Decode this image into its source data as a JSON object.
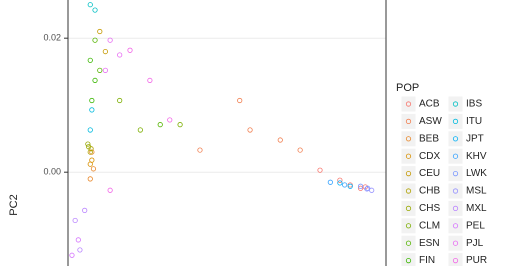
{
  "chart_data": {
    "type": "scatter",
    "y_label": "PC2",
    "legend_title": "POP",
    "ylim": [
      -0.014,
      0.0257
    ],
    "yticks": [
      0.02,
      {
        "value": 0,
        "label": "0.00"
      }
    ],
    "xlim": [
      -0.01,
      0.03
    ],
    "grid": true,
    "series": [
      {
        "name": "ACB",
        "color": "#F8766D",
        "x": [
          0.0255,
          0.0268,
          0.0274,
          0.0242,
          0.0217
        ],
        "values": [
          -0.0019,
          -0.0024,
          -0.0022,
          -0.0012,
          0.0003
        ]
      },
      {
        "name": "ASW",
        "color": "#F17E4F",
        "x": [
          0.0116,
          0.0167,
          0.0192,
          0.0129,
          0.0066
        ],
        "values": [
          0.0107,
          0.0048,
          0.0033,
          0.0063,
          0.0033
        ]
      },
      {
        "name": "BEB",
        "color": "#E88526",
        "x": [
          -0.007,
          -0.0068,
          -0.0072
        ],
        "values": [
          0.003,
          0.0005,
          -0.001
        ]
      },
      {
        "name": "CDX",
        "color": "#D89000",
        "x": [
          -0.0072,
          -0.007
        ],
        "values": [
          0.0012,
          0.0018
        ]
      },
      {
        "name": "CEU",
        "color": "#C59900",
        "x": [
          -0.006,
          -0.0053
        ],
        "values": [
          0.021,
          0.018
        ]
      },
      {
        "name": "CHB",
        "color": "#AFA100",
        "x": [
          -0.0072,
          -0.0071
        ],
        "values": [
          0.003,
          0.0035
        ]
      },
      {
        "name": "CHS",
        "color": "#97A800",
        "x": [
          -0.0075,
          -0.0074
        ],
        "values": [
          0.0042,
          0.0038
        ]
      },
      {
        "name": "CLM",
        "color": "#7CAE00",
        "x": [
          -0.0009,
          0.0041,
          -0.0035
        ],
        "values": [
          0.0063,
          0.0071,
          0.0107
        ]
      },
      {
        "name": "ESN",
        "color": "#55B400",
        "x": [
          -0.0066,
          -0.006,
          0.0016
        ],
        "values": [
          0.0197,
          0.0152,
          0.0071
        ]
      },
      {
        "name": "FIN",
        "color": "#39B600",
        "x": [
          -0.0072,
          -0.0066,
          -0.007
        ],
        "values": [
          0.0167,
          0.0137,
          0.0107
        ]
      },
      {
        "name": "IBS",
        "color": "#00BFC4",
        "x": [
          -0.0072,
          -0.0066
        ],
        "values": [
          0.025,
          0.0242
        ]
      },
      {
        "name": "ITU",
        "color": "#00BADE",
        "x": [
          -0.007,
          -0.0072
        ],
        "values": [
          0.0093,
          0.0063
        ]
      },
      {
        "name": "JPT",
        "color": "#00B0F6",
        "x": [
          0.0242,
          0.0255
        ],
        "values": [
          -0.0016,
          -0.0021
        ]
      },
      {
        "name": "KHV",
        "color": "#35A2FF",
        "x": [
          0.023,
          0.0248
        ],
        "values": [
          -0.0015,
          -0.0019
        ]
      },
      {
        "name": "LWK",
        "color": "#7997FF",
        "x": [
          0.0268,
          0.0277
        ],
        "values": [
          -0.0021,
          -0.0024
        ]
      },
      {
        "name": "MSL",
        "color": "#9590FF",
        "x": [
          0.0276,
          0.0282
        ],
        "values": [
          -0.0025,
          -0.0027
        ]
      },
      {
        "name": "MXL",
        "color": "#B983FF",
        "x": [
          -0.0091,
          -0.0085,
          -0.0079
        ],
        "values": [
          -0.0072,
          -0.0116,
          -0.0057
        ]
      },
      {
        "name": "PEL",
        "color": "#D575FE",
        "x": [
          -0.0095,
          -0.0087
        ],
        "values": [
          -0.0124,
          -0.0101
        ]
      },
      {
        "name": "PJL",
        "color": "#E76BF3",
        "x": [
          -0.0053,
          -0.0035,
          -0.0047
        ],
        "values": [
          0.0152,
          0.0175,
          0.0197
        ]
      },
      {
        "name": "PUR",
        "color": "#F265E7",
        "x": [
          -0.0022,
          0.0003,
          0.0028,
          -0.0047
        ],
        "values": [
          0.0182,
          0.0137,
          0.0078,
          -0.0027
        ]
      }
    ]
  }
}
